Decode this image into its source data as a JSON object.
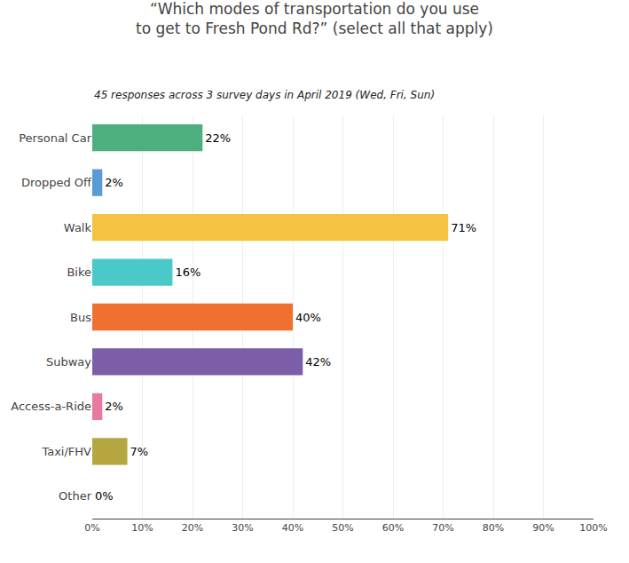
{
  "chart_data": {
    "type": "bar",
    "orientation": "horizontal",
    "title": "“Which modes of transportation do you use\nto get to Fresh Pond Rd?” (select all that apply)",
    "subtitle": "45 responses across 3 survey days in April 2019 (Wed, Fri, Sun)",
    "categories": [
      "Personal Car",
      "Dropped Off",
      "Walk",
      "Bike",
      "Bus",
      "Subway",
      "Access-a-Ride",
      "Taxi/FHV",
      "Other"
    ],
    "values": [
      22,
      2,
      71,
      16,
      40,
      42,
      2,
      7,
      0
    ],
    "value_labels": [
      "22%",
      "2%",
      "71%",
      "16%",
      "40%",
      "42%",
      "2%",
      "7%",
      "0%"
    ],
    "data_labels": true,
    "colors": [
      "#4caf7d",
      "#5b9bd5",
      "#f5c242",
      "#4bc8c8",
      "#f07030",
      "#7b5ea7",
      "#e87aa0",
      "#b5a642",
      "#d4d0aa"
    ],
    "xlim": [
      0,
      100
    ],
    "xticks": [
      {
        "value": 0,
        "label": "0%"
      },
      {
        "value": 10,
        "label": "10%"
      },
      {
        "value": 20,
        "label": "20%"
      },
      {
        "value": 30,
        "label": "30%"
      },
      {
        "value": 40,
        "label": "40%"
      },
      {
        "value": 50,
        "label": "50%"
      },
      {
        "value": 60,
        "label": "60%"
      },
      {
        "value": 70,
        "label": "70%"
      },
      {
        "value": 80,
        "label": "80%"
      },
      {
        "value": 90,
        "label": "90%"
      },
      {
        "value": 100,
        "label": "100%"
      }
    ],
    "grid": true
  }
}
